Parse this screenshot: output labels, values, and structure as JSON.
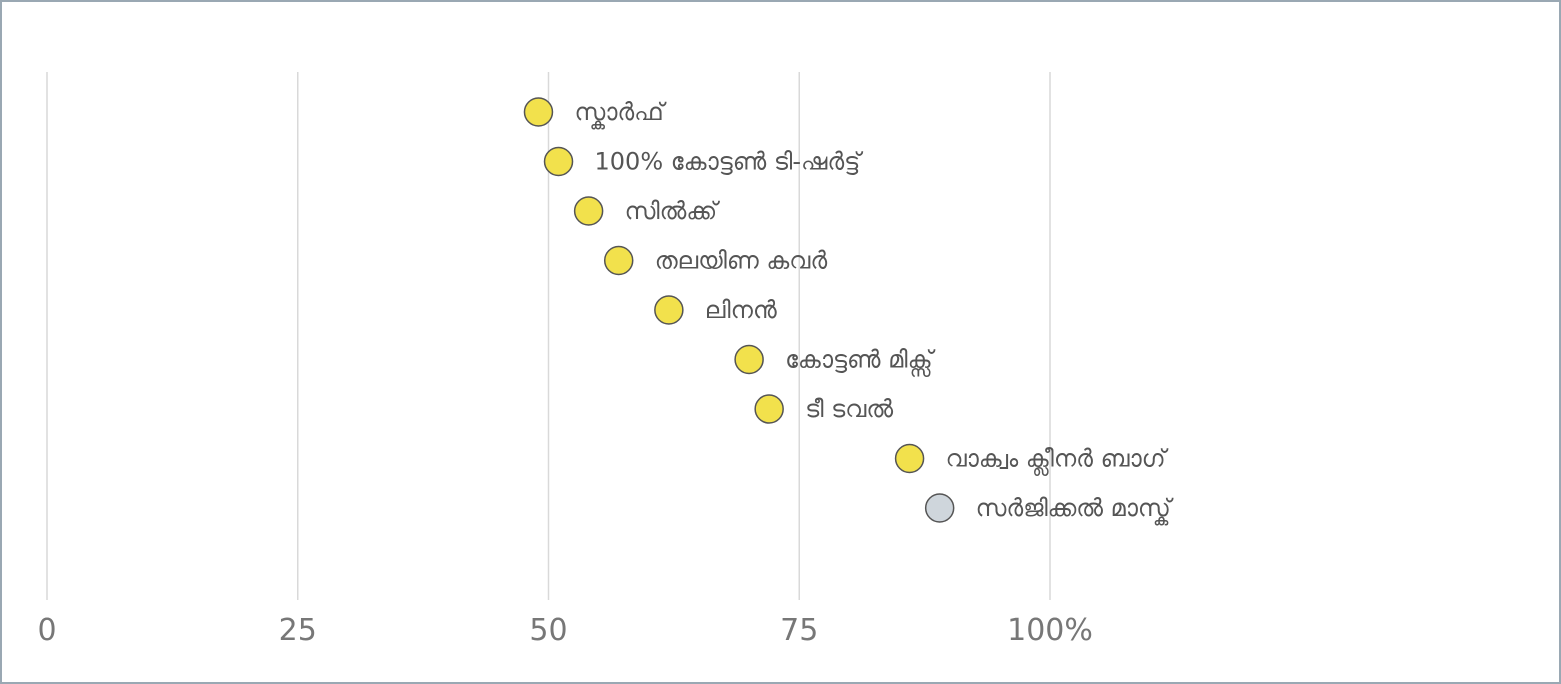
{
  "chart_data": {
    "type": "scatter",
    "title": "",
    "xlabel": "",
    "ylabel": "",
    "xlim": [
      0,
      100
    ],
    "grid": true,
    "legend": "none",
    "x_ticks": [
      {
        "value": 0,
        "label": "0"
      },
      {
        "value": 25,
        "label": "25"
      },
      {
        "value": 50,
        "label": "50"
      },
      {
        "value": 75,
        "label": "75"
      },
      {
        "value": 100,
        "label": "100%"
      }
    ],
    "points": [
      {
        "label": "സ്കാർഫ്",
        "x": 49,
        "color": "#f2e14c"
      },
      {
        "label": "100% കോട്ടൺ ടി-ഷർട്ട്",
        "x": 51,
        "color": "#f2e14c"
      },
      {
        "label": "സിൽക്ക്",
        "x": 54,
        "color": "#f2e14c"
      },
      {
        "label": "തലയിണ കവർ",
        "x": 57,
        "color": "#f2e14c"
      },
      {
        "label": "ലിനൻ",
        "x": 62,
        "color": "#f2e14c"
      },
      {
        "label": "കോട്ടൺ മിക്സ്",
        "x": 70,
        "color": "#f2e14c"
      },
      {
        "label": "ടീ ടവൽ",
        "x": 72,
        "color": "#f2e14c"
      },
      {
        "label": "വാക്വം ക്ലീനർ ബാഗ്",
        "x": 86,
        "color": "#f2e14c"
      },
      {
        "label": "സർജിക്കൽ മാസ്ക്",
        "x": 89,
        "color": "#cfd6dc"
      }
    ]
  }
}
